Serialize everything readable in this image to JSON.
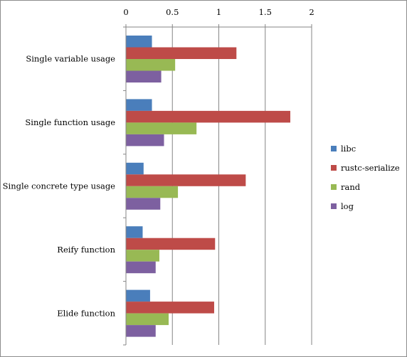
{
  "chart_data": {
    "type": "bar",
    "orientation": "horizontal",
    "x_axis_position": "top",
    "categories": [
      "Single variable usage",
      "Single function usage",
      "Single concrete type usage",
      "Reify function",
      "Elide function"
    ],
    "series": [
      {
        "name": "libc",
        "color": "#4a7ebb",
        "values": [
          0.28,
          0.28,
          0.19,
          0.18,
          0.26
        ]
      },
      {
        "name": "rustc-serialize",
        "color": "#be4b48",
        "values": [
          1.19,
          1.77,
          1.29,
          0.96,
          0.95
        ]
      },
      {
        "name": "rand",
        "color": "#98b954",
        "values": [
          0.53,
          0.76,
          0.56,
          0.36,
          0.46
        ]
      },
      {
        "name": "log",
        "color": "#7d60a0",
        "values": [
          0.38,
          0.41,
          0.37,
          0.32,
          0.32
        ]
      }
    ],
    "xlim": [
      0,
      2
    ],
    "xticks": [
      "0",
      "0.5",
      "1",
      "1.5",
      "2"
    ],
    "title": "",
    "xlabel": "",
    "ylabel": "",
    "grid": "vertical",
    "legend": "right"
  }
}
